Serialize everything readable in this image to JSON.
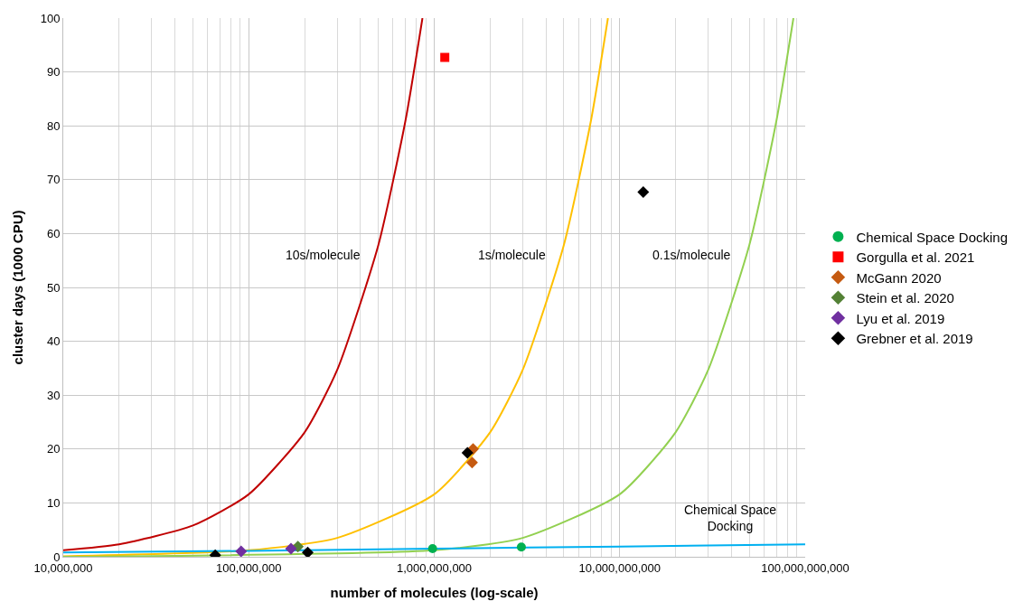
{
  "chart_data": {
    "type": "line",
    "xlabel": "number of molecules (log-scale)",
    "ylabel": "cluster days (1000 CPU)",
    "log": "x",
    "grid": true,
    "legend": "right",
    "line_style": "solid",
    "marker": "none",
    "xlim": [
      10000000,
      100000000000
    ],
    "ylim": [
      0,
      100
    ],
    "xticks": [
      {
        "value": 10000000,
        "label": "10,000,000"
      },
      {
        "value": 100000000,
        "label": "100,000,000"
      },
      {
        "value": 1000000000,
        "label": "1,000,000,000"
      },
      {
        "value": 10000000000,
        "label": "10,000,000,000"
      },
      {
        "value": 100000000000,
        "label": "100,000,000,000"
      }
    ],
    "yticks": [
      0,
      10,
      20,
      30,
      40,
      50,
      60,
      70,
      80,
      90,
      100
    ],
    "series": [
      {
        "name": "10s/molecule",
        "color": "#c00000",
        "x": [
          10000000,
          20000000,
          50000000,
          100000000,
          200000000,
          300000000,
          500000000,
          700000000,
          864000000
        ],
        "values": [
          1.2,
          2.3,
          5.8,
          11.6,
          23.1,
          34.7,
          57.9,
          81.0,
          100
        ]
      },
      {
        "name": "1s/molecule",
        "color": "#ffc000",
        "x": [
          10000000,
          100000000,
          300000000,
          1000000000,
          2000000000,
          3000000000,
          5000000000,
          7000000000,
          8640000000
        ],
        "values": [
          0.1,
          1.2,
          3.5,
          11.6,
          23.1,
          34.7,
          57.9,
          81.0,
          100
        ]
      },
      {
        "name": "0.1s/molecule",
        "color": "#92d050",
        "x": [
          10000000,
          1000000000,
          3000000000,
          10000000000,
          20000000000,
          30000000000,
          50000000000,
          70000000000,
          86400000000
        ],
        "values": [
          0,
          1.2,
          3.5,
          11.6,
          23.1,
          34.7,
          57.9,
          81.0,
          100
        ]
      },
      {
        "name": "Chemical Space\nDocking",
        "color": "#00b0f0",
        "x": [
          10000000,
          100000000,
          1000000000,
          10000000000,
          100000000000
        ],
        "values": [
          0.8,
          1.1,
          1.5,
          1.9,
          2.3
        ]
      },
      {
        "type": "scatter",
        "name": "Chemical Space Docking",
        "color": "#00b050",
        "marker": "circle",
        "x": [
          980000000,
          2950000000
        ],
        "values": [
          1.5,
          1.8
        ]
      },
      {
        "type": "scatter",
        "name": "Gorgulla et al. 2021",
        "color": "#ff0000",
        "marker": "square",
        "x": [
          1140000000
        ],
        "values": [
          92.7
        ]
      },
      {
        "type": "scatter",
        "name": "McGann 2020",
        "color": "#c55a11",
        "marker": "diamond",
        "x": [
          1620000000,
          1600000000
        ],
        "values": [
          20,
          17.5
        ]
      },
      {
        "type": "scatter",
        "name": "Stein et al. 2020",
        "color": "#538135",
        "marker": "diamond",
        "x": [
          184000000
        ],
        "values": [
          1.9
        ]
      },
      {
        "type": "scatter",
        "name": "Lyu et al. 2019",
        "color": "#7030a0",
        "marker": "diamond",
        "x": [
          91000000,
          169000000
        ],
        "values": [
          1.0,
          1.5
        ]
      },
      {
        "type": "scatter",
        "name": "Grebner et al. 2019",
        "color": "#000000",
        "marker": "diamond",
        "x": [
          66000000,
          208000000,
          1510000000,
          13400000000
        ],
        "values": [
          0.3,
          0.8,
          19.3,
          67.7
        ]
      }
    ]
  }
}
